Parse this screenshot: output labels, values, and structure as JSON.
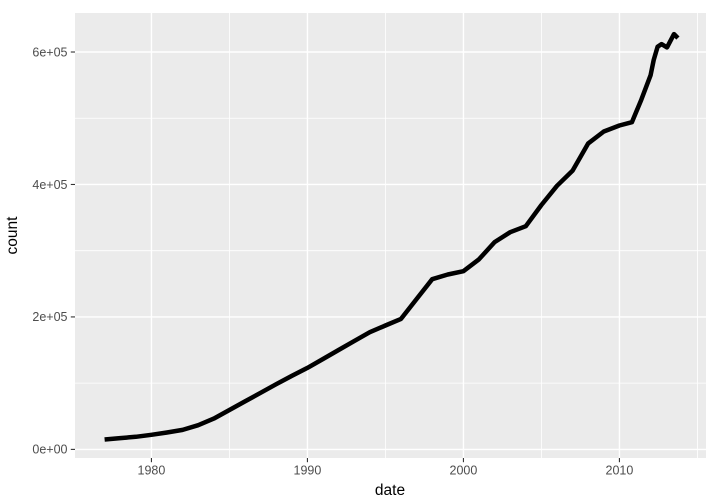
{
  "figure": {
    "background": "#FFFFFF"
  },
  "chart_data": {
    "type": "line",
    "title": "",
    "xlabel": "date",
    "ylabel": "count",
    "legend": "none",
    "grid": "on",
    "panel_background": "#EBEBEB",
    "gridline_color": "#FFFFFF",
    "line_color": "#000000",
    "line_width": 4.5,
    "tick_label_color": "#4D4D4D",
    "tick_mark_color": "#333333",
    "axis_title_color": "#000000",
    "xlim": [
      1975.1,
      2015.55
    ],
    "ylim": [
      -13000,
      658900
    ],
    "x_major_ticks": [
      {
        "value": 1980,
        "label": "1980"
      },
      {
        "value": 1990,
        "label": "1990"
      },
      {
        "value": 2000,
        "label": "2000"
      },
      {
        "value": 2010,
        "label": "2010"
      }
    ],
    "y_major_ticks": [
      {
        "value": 0,
        "label": "0e+00"
      },
      {
        "value": 200000,
        "label": "2e+05"
      },
      {
        "value": 400000,
        "label": "4e+05"
      },
      {
        "value": 600000,
        "label": "6e+05"
      }
    ],
    "x_minor": [
      1975,
      1985,
      1995,
      2005,
      2015
    ],
    "y_minor": [
      100000,
      300000,
      500000,
      700000
    ],
    "series": [
      {
        "name": "count",
        "color": "#000000",
        "points": [
          [
            1977,
            15000
          ],
          [
            1978,
            17000
          ],
          [
            1979,
            19000
          ],
          [
            1980,
            22000
          ],
          [
            1981,
            25500
          ],
          [
            1982,
            29500
          ],
          [
            1983,
            36500
          ],
          [
            1984,
            46500
          ],
          [
            1985,
            59500
          ],
          [
            1986,
            72500
          ],
          [
            1987,
            85500
          ],
          [
            1988,
            98500
          ],
          [
            1989,
            111000
          ],
          [
            1990,
            123000
          ],
          [
            1991,
            136500
          ],
          [
            1992,
            150000
          ],
          [
            1993,
            163500
          ],
          [
            1994,
            177000
          ],
          [
            1995,
            187000
          ],
          [
            1996,
            197000
          ],
          [
            1997,
            227000
          ],
          [
            1998,
            257000
          ],
          [
            1999,
            264000
          ],
          [
            2000,
            269000
          ],
          [
            2001,
            287000
          ],
          [
            2002,
            313000
          ],
          [
            2003,
            328000
          ],
          [
            2004,
            337000
          ],
          [
            2005,
            369000
          ],
          [
            2006,
            398000
          ],
          [
            2007,
            421000
          ],
          [
            2008,
            462000
          ],
          [
            2009,
            480000
          ],
          [
            2010,
            489000
          ],
          [
            2010.8,
            494000
          ],
          [
            2011.4,
            528000
          ],
          [
            2012,
            565000
          ],
          [
            2012.2,
            588000
          ],
          [
            2012.45,
            608000
          ],
          [
            2012.7,
            612000
          ],
          [
            2013.05,
            607000
          ],
          [
            2013.5,
            627000
          ],
          [
            2013.75,
            621000
          ]
        ]
      }
    ]
  }
}
